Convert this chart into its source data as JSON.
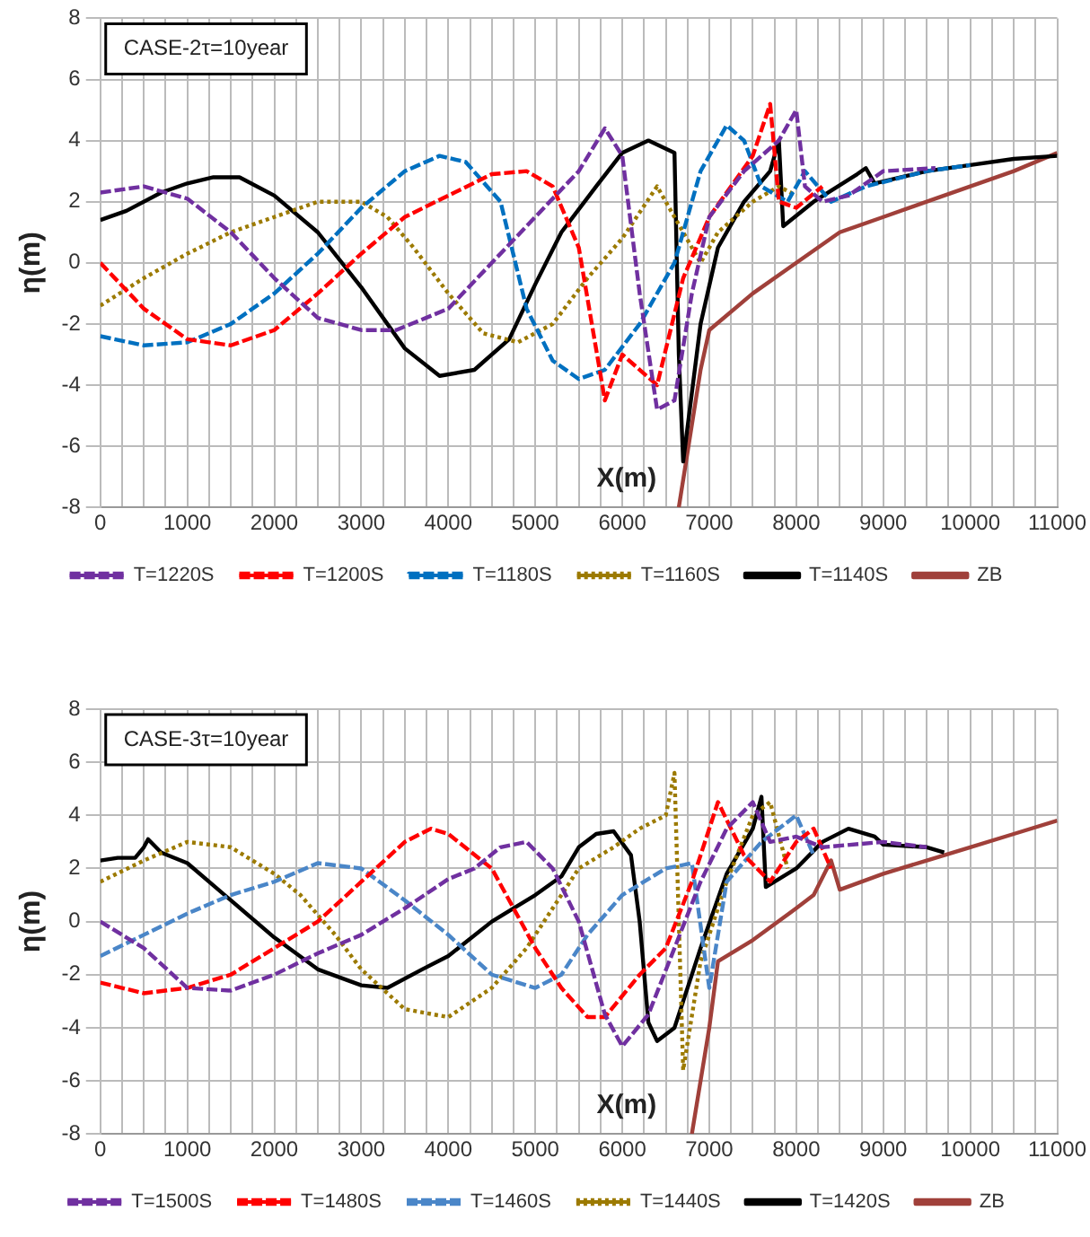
{
  "chart_data": [
    {
      "type": "line",
      "ylabel": "η(m)",
      "xlabel": "X(m)",
      "annotations": [
        "CASE-2τ=10year"
      ],
      "xlim": [
        0,
        11000
      ],
      "ylim": [
        -8,
        8
      ],
      "xticks": [
        0,
        {
          "value": 250,
          "label": null
        },
        {
          "value": 500,
          "label": null
        },
        {
          "value": 750,
          "label": null
        },
        1000,
        {
          "value": 1250,
          "label": null
        },
        {
          "value": 1500,
          "label": null
        },
        {
          "value": 1750,
          "label": null
        },
        2000,
        {
          "value": 2250,
          "label": null
        },
        {
          "value": 2500,
          "label": null
        },
        {
          "value": 2750,
          "label": null
        },
        3000,
        {
          "value": 3250,
          "label": null
        },
        {
          "value": 3500,
          "label": null
        },
        {
          "value": 3750,
          "label": null
        },
        4000,
        {
          "value": 4250,
          "label": null
        },
        {
          "value": 4500,
          "label": null
        },
        {
          "value": 4750,
          "label": null
        },
        5000,
        {
          "value": 5250,
          "label": null
        },
        {
          "value": 5500,
          "label": null
        },
        {
          "value": 5750,
          "label": null
        },
        6000,
        {
          "value": 6250,
          "label": null
        },
        {
          "value": 6500,
          "label": null
        },
        {
          "value": 6750,
          "label": null
        },
        7000,
        {
          "value": 7250,
          "label": null
        },
        {
          "value": 7500,
          "label": null
        },
        {
          "value": 7750,
          "label": null
        },
        8000,
        {
          "value": 8250,
          "label": null
        },
        {
          "value": 8500,
          "label": null
        },
        {
          "value": 8750,
          "label": null
        },
        9000,
        {
          "value": 9250,
          "label": null
        },
        {
          "value": 9500,
          "label": null
        },
        {
          "value": 9750,
          "label": null
        },
        10000,
        {
          "value": 10250,
          "label": null
        },
        {
          "value": 10500,
          "label": null
        },
        {
          "value": 10750,
          "label": null
        },
        11000
      ],
      "yticks": [
        -8,
        -6,
        -4,
        -2,
        0,
        2,
        4,
        6,
        8
      ],
      "grid": true,
      "legend": "bottom",
      "marker": "none",
      "series": [
        {
          "name": "T=1220S",
          "color": "#7030a0",
          "line_style": "dashed",
          "x": [
            0,
            500,
            1000,
            1500,
            2000,
            2500,
            3000,
            3400,
            4000,
            4500,
            5000,
            5500,
            5800,
            6000,
            6200,
            6400,
            6600,
            6800,
            7000,
            7400,
            7800,
            8000,
            8100,
            8300,
            8600,
            9000,
            9600
          ],
          "values": [
            2.3,
            2.5,
            2.1,
            1.0,
            -0.5,
            -1.8,
            -2.2,
            -2.2,
            -1.5,
            0,
            1.5,
            3.0,
            4.4,
            3.5,
            -1,
            -4.8,
            -4.5,
            -1,
            1.5,
            3.0,
            4.0,
            5.0,
            2.5,
            2.0,
            2.2,
            3.0,
            3.1
          ]
        },
        {
          "name": "T=1200S",
          "color": "#ff0000",
          "line_style": "dashed",
          "x": [
            0,
            500,
            1000,
            1500,
            2000,
            2500,
            3000,
            3500,
            4000,
            4500,
            4900,
            5200,
            5500,
            5800,
            6000,
            6400,
            6700,
            7000,
            7500,
            7700,
            7800,
            8000,
            8300
          ],
          "values": [
            0,
            -1.5,
            -2.5,
            -2.7,
            -2.2,
            -1,
            0.3,
            1.5,
            2.2,
            2.9,
            3.0,
            2.5,
            0.5,
            -4.5,
            -3.0,
            -4.0,
            -0.5,
            1.5,
            3.5,
            5.2,
            2.0,
            1.8,
            2.5
          ]
        },
        {
          "name": "T=1180S",
          "color": "#0070c0",
          "line_style": "dashed",
          "x": [
            0,
            500,
            1000,
            1500,
            2000,
            2500,
            3000,
            3500,
            3900,
            4200,
            4600,
            4900,
            5200,
            5500,
            5800,
            6200,
            6600,
            6900,
            7200,
            7400,
            7600,
            7900,
            8100,
            8400,
            8800,
            9500,
            10000
          ],
          "values": [
            -2.4,
            -2.7,
            -2.6,
            -2.0,
            -1.0,
            0.3,
            1.8,
            3.0,
            3.5,
            3.3,
            2.0,
            -1.5,
            -3.2,
            -3.8,
            -3.5,
            -2.0,
            0,
            3,
            4.5,
            4.0,
            2.5,
            2.0,
            3.0,
            2.0,
            2.5,
            3.0,
            3.2
          ]
        },
        {
          "name": "T=1160S",
          "color": "#9c7a00",
          "line_style": "dotted",
          "x": [
            0,
            500,
            1000,
            1500,
            2000,
            2500,
            3000,
            3300,
            3600,
            4000,
            4400,
            4800,
            5200,
            5600,
            6000,
            6400,
            6600,
            6900,
            7100,
            7500,
            7800,
            8000
          ],
          "values": [
            -1.4,
            -0.5,
            0.3,
            1.0,
            1.5,
            2.0,
            2.0,
            1.5,
            0.5,
            -1.0,
            -2.3,
            -2.6,
            -2.0,
            -0.5,
            0.8,
            2.5,
            1.5,
            0,
            1.0,
            2.0,
            2.5,
            2.2
          ]
        },
        {
          "name": "T=1140S",
          "color": "#000000",
          "line_style": "solid",
          "x": [
            0,
            300,
            700,
            1000,
            1300,
            1600,
            2000,
            2500,
            3000,
            3500,
            3900,
            4300,
            4700,
            5000,
            5300,
            5700,
            6000,
            6300,
            6600,
            6650,
            6700,
            6900,
            7100,
            7400,
            7700,
            7800,
            7850,
            8200,
            8700,
            8800,
            8900,
            9500,
            10000,
            10500,
            11000
          ],
          "values": [
            1.4,
            1.7,
            2.3,
            2.6,
            2.8,
            2.8,
            2.2,
            1.0,
            -0.8,
            -2.8,
            -3.7,
            -3.5,
            -2.5,
            -0.7,
            1.0,
            2.5,
            3.6,
            4.0,
            3.6,
            -3,
            -6.5,
            -2,
            0.5,
            2.0,
            3.0,
            4.0,
            1.2,
            2.0,
            2.9,
            3.1,
            2.6,
            3.0,
            3.2,
            3.4,
            3.5
          ]
        },
        {
          "name": "ZB",
          "color": "#a0403a",
          "line_style": "solid",
          "x": [
            6650,
            6900,
            7000,
            7500,
            8000,
            8500,
            9000,
            9500,
            10000,
            10500,
            11000
          ],
          "values": [
            -8,
            -3.5,
            -2.2,
            -1.0,
            0,
            1.0,
            1.5,
            2.0,
            2.5,
            3.0,
            3.6
          ]
        }
      ]
    },
    {
      "type": "line",
      "ylabel": "η(m)",
      "xlabel": "X(m)",
      "annotations": [
        "CASE-3τ=10year"
      ],
      "xlim": [
        0,
        11000
      ],
      "ylim": [
        -8,
        8
      ],
      "xticks": [
        0,
        {
          "value": 250,
          "label": null
        },
        {
          "value": 500,
          "label": null
        },
        {
          "value": 750,
          "label": null
        },
        1000,
        {
          "value": 1250,
          "label": null
        },
        {
          "value": 1500,
          "label": null
        },
        {
          "value": 1750,
          "label": null
        },
        2000,
        {
          "value": 2250,
          "label": null
        },
        {
          "value": 2500,
          "label": null
        },
        {
          "value": 2750,
          "label": null
        },
        3000,
        {
          "value": 3250,
          "label": null
        },
        {
          "value": 3500,
          "label": null
        },
        {
          "value": 3750,
          "label": null
        },
        4000,
        {
          "value": 4250,
          "label": null
        },
        {
          "value": 4500,
          "label": null
        },
        {
          "value": 4750,
          "label": null
        },
        5000,
        {
          "value": 5250,
          "label": null
        },
        {
          "value": 5500,
          "label": null
        },
        {
          "value": 5750,
          "label": null
        },
        6000,
        {
          "value": 6250,
          "label": null
        },
        {
          "value": 6500,
          "label": null
        },
        {
          "value": 6750,
          "label": null
        },
        7000,
        {
          "value": 7250,
          "label": null
        },
        {
          "value": 7500,
          "label": null
        },
        {
          "value": 7750,
          "label": null
        },
        8000,
        {
          "value": 8250,
          "label": null
        },
        {
          "value": 8500,
          "label": null
        },
        {
          "value": 8750,
          "label": null
        },
        9000,
        {
          "value": 9250,
          "label": null
        },
        {
          "value": 9500,
          "label": null
        },
        {
          "value": 9750,
          "label": null
        },
        10000,
        {
          "value": 10250,
          "label": null
        },
        {
          "value": 10500,
          "label": null
        },
        {
          "value": 10750,
          "label": null
        },
        11000
      ],
      "yticks": [
        -8,
        -6,
        -4,
        -2,
        0,
        2,
        4,
        6,
        8
      ],
      "grid": true,
      "legend": "bottom",
      "marker": "none",
      "series": [
        {
          "name": "T=1500S",
          "color": "#7030a0",
          "line_style": "dashed",
          "x": [
            0,
            500,
            1000,
            1500,
            2000,
            2500,
            3000,
            3500,
            4000,
            4300,
            4600,
            4900,
            5200,
            5500,
            5800,
            6000,
            6300,
            6600,
            6900,
            7200,
            7500,
            7700,
            8000,
            8300,
            9000,
            9500
          ],
          "values": [
            0,
            -1.0,
            -2.5,
            -2.6,
            -2.0,
            -1.2,
            -0.5,
            0.5,
            1.6,
            2.0,
            2.8,
            3.0,
            2.0,
            0,
            -3.5,
            -4.7,
            -3.5,
            -1.0,
            1.5,
            3.5,
            4.5,
            3.0,
            3.2,
            2.8,
            3.0,
            2.8
          ]
        },
        {
          "name": "T=1480S",
          "color": "#ff0000",
          "line_style": "dashed",
          "x": [
            0,
            500,
            1000,
            1500,
            2000,
            2500,
            3000,
            3500,
            3800,
            4000,
            4500,
            5000,
            5300,
            5600,
            5800,
            6200,
            6500,
            6800,
            7100,
            7400,
            7700,
            8000,
            8200,
            8400
          ],
          "values": [
            -2.3,
            -2.7,
            -2.5,
            -2.0,
            -1.0,
            0,
            1.5,
            3.0,
            3.5,
            3.3,
            2.0,
            -1.0,
            -2.5,
            -3.6,
            -3.6,
            -2.0,
            -1.0,
            1.5,
            4.5,
            2.5,
            1.5,
            3.0,
            3.5,
            2.0
          ]
        },
        {
          "name": "T=1460S",
          "color": "#4a86c8",
          "line_style": "dashed",
          "x": [
            0,
            500,
            1000,
            1500,
            2000,
            2500,
            3000,
            3500,
            4000,
            4500,
            5000,
            5300,
            5600,
            6000,
            6500,
            6800,
            7000,
            7200,
            7600,
            8000,
            8200
          ],
          "values": [
            -1.3,
            -0.5,
            0.3,
            1.0,
            1.5,
            2.2,
            2.0,
            0.8,
            -0.5,
            -2.0,
            -2.5,
            -2.0,
            -0.5,
            1.0,
            2.0,
            2.2,
            -2.5,
            1.5,
            3.0,
            4.0,
            2.5
          ]
        },
        {
          "name": "T=1440S",
          "color": "#9c7a00",
          "line_style": "dotted",
          "x": [
            0,
            500,
            1000,
            1500,
            2000,
            2300,
            2700,
            3000,
            3500,
            4000,
            4500,
            4900,
            5200,
            5500,
            5900,
            6200,
            6500,
            6600,
            6700,
            6900,
            7200,
            7500,
            7700,
            7900
          ],
          "values": [
            1.5,
            2.3,
            3.0,
            2.8,
            1.8,
            1.0,
            -0.5,
            -1.8,
            -3.3,
            -3.6,
            -2.5,
            -1.0,
            0.5,
            2.0,
            2.8,
            3.5,
            4.0,
            5.6,
            -5.6,
            -1.5,
            1.5,
            4.0,
            4.5,
            2.0
          ]
        },
        {
          "name": "T=1420S",
          "color": "#000000",
          "line_style": "solid",
          "x": [
            0,
            200,
            400,
            500,
            550,
            700,
            1000,
            1500,
            2000,
            2500,
            3000,
            3300,
            3700,
            4000,
            4500,
            5000,
            5300,
            5500,
            5700,
            5900,
            6100,
            6200,
            6300,
            6400,
            6600,
            6900,
            7200,
            7500,
            7600,
            7650,
            8000,
            8300,
            8600,
            8900,
            9000,
            9500,
            9700
          ],
          "values": [
            2.3,
            2.4,
            2.4,
            2.8,
            3.1,
            2.6,
            2.2,
            0.8,
            -0.6,
            -1.8,
            -2.4,
            -2.5,
            -1.8,
            -1.3,
            0,
            1.0,
            1.7,
            2.8,
            3.3,
            3.4,
            2.5,
            0,
            -3.8,
            -4.5,
            -4.0,
            -1.0,
            1.8,
            3.5,
            4.7,
            1.3,
            2.0,
            3.0,
            3.5,
            3.2,
            2.9,
            2.8,
            2.6
          ]
        },
        {
          "name": "ZB",
          "color": "#a0403a",
          "line_style": "solid",
          "x": [
            6800,
            7000,
            7100,
            7500,
            8000,
            8200,
            8400,
            8500,
            9000,
            9500,
            10000,
            10500,
            11000
          ],
          "values": [
            -8,
            -4.0,
            -1.5,
            -0.7,
            0.5,
            1.0,
            2.3,
            1.2,
            1.8,
            2.3,
            2.8,
            3.3,
            3.8
          ]
        }
      ]
    }
  ]
}
